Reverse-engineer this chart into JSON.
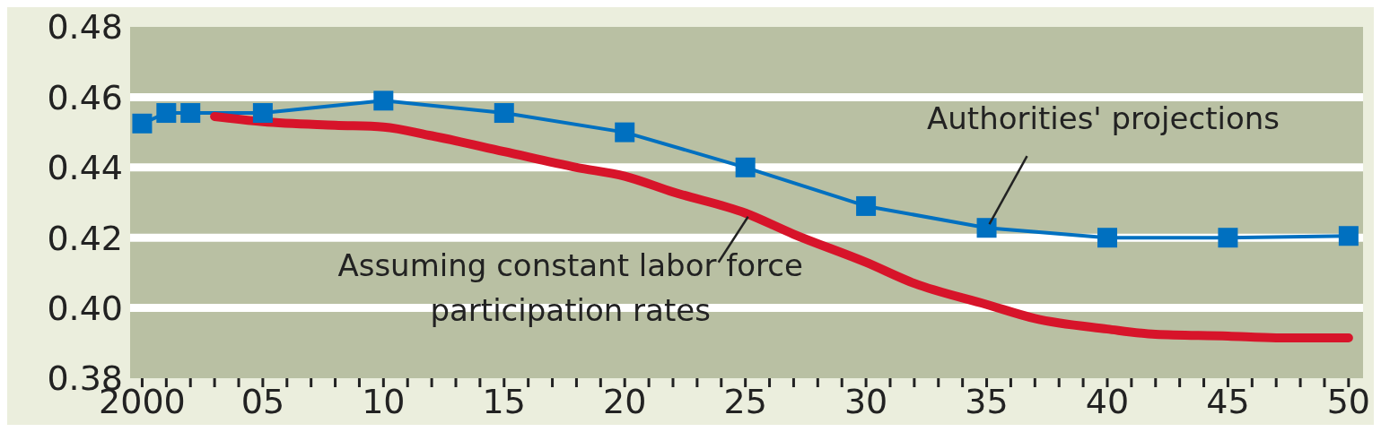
{
  "chart_data": {
    "type": "line",
    "x": [
      2000,
      2001,
      2002,
      2005,
      2010,
      2015,
      2020,
      2025,
      2030,
      2035,
      2040,
      2045,
      2050
    ],
    "series": [
      {
        "name": "Authorities' projections",
        "color": "#0070c0",
        "marker": "square",
        "values": [
          0.4525,
          0.4555,
          0.4555,
          0.4555,
          0.459,
          0.4555,
          0.45,
          0.44,
          0.429,
          0.4228,
          0.42,
          0.42,
          0.4205
        ]
      },
      {
        "name": "Assuming constant labor force participation rates",
        "color": "#d7142a",
        "marker": "none",
        "x": [
          2003,
          2005,
          2008,
          2010,
          2012,
          2015,
          2018,
          2020,
          2022,
          2025,
          2027,
          2030,
          2032,
          2035,
          2037,
          2040,
          2042,
          2045,
          2047,
          2050
        ],
        "values": [
          0.4545,
          0.453,
          0.452,
          0.4515,
          0.449,
          0.4445,
          0.44,
          0.4375,
          0.433,
          0.427,
          0.421,
          0.413,
          0.407,
          0.401,
          0.397,
          0.394,
          0.3925,
          0.392,
          0.3915,
          0.3915
        ]
      }
    ],
    "xlim": [
      1999.5,
      2050.6
    ],
    "xticks": [
      {
        "value": 2000,
        "label": "2000"
      },
      {
        "value": 2001,
        "label": null
      },
      {
        "value": 2002,
        "label": null
      },
      {
        "value": 2003,
        "label": null
      },
      {
        "value": 2004,
        "label": null
      },
      {
        "value": 2005,
        "label": "05"
      },
      {
        "value": 2006,
        "label": null
      },
      {
        "value": 2007,
        "label": null
      },
      {
        "value": 2008,
        "label": null
      },
      {
        "value": 2009,
        "label": null
      },
      {
        "value": 2010,
        "label": "10"
      },
      {
        "value": 2011,
        "label": null
      },
      {
        "value": 2012,
        "label": null
      },
      {
        "value": 2013,
        "label": null
      },
      {
        "value": 2014,
        "label": null
      },
      {
        "value": 2015,
        "label": "15"
      },
      {
        "value": 2016,
        "label": null
      },
      {
        "value": 2017,
        "label": null
      },
      {
        "value": 2018,
        "label": null
      },
      {
        "value": 2019,
        "label": null
      },
      {
        "value": 2020,
        "label": "20"
      },
      {
        "value": 2021,
        "label": null
      },
      {
        "value": 2022,
        "label": null
      },
      {
        "value": 2023,
        "label": null
      },
      {
        "value": 2024,
        "label": null
      },
      {
        "value": 2025,
        "label": "25"
      },
      {
        "value": 2026,
        "label": null
      },
      {
        "value": 2027,
        "label": null
      },
      {
        "value": 2028,
        "label": null
      },
      {
        "value": 2029,
        "label": null
      },
      {
        "value": 2030,
        "label": "30"
      },
      {
        "value": 2031,
        "label": null
      },
      {
        "value": 2032,
        "label": null
      },
      {
        "value": 2033,
        "label": null
      },
      {
        "value": 2034,
        "label": null
      },
      {
        "value": 2035,
        "label": "35"
      },
      {
        "value": 2036,
        "label": null
      },
      {
        "value": 2037,
        "label": null
      },
      {
        "value": 2038,
        "label": null
      },
      {
        "value": 2039,
        "label": null
      },
      {
        "value": 2040,
        "label": "40"
      },
      {
        "value": 2041,
        "label": null
      },
      {
        "value": 2042,
        "label": null
      },
      {
        "value": 2043,
        "label": null
      },
      {
        "value": 2044,
        "label": null
      },
      {
        "value": 2045,
        "label": "45"
      },
      {
        "value": 2046,
        "label": null
      },
      {
        "value": 2047,
        "label": null
      },
      {
        "value": 2048,
        "label": null
      },
      {
        "value": 2049,
        "label": null
      },
      {
        "value": 2050,
        "label": "50"
      }
    ],
    "ylim": [
      0.38,
      0.48
    ],
    "yticks": [
      {
        "value": 0.38,
        "label": "0.38"
      },
      {
        "value": 0.4,
        "label": "0.40"
      },
      {
        "value": 0.42,
        "label": "0.42"
      },
      {
        "value": 0.44,
        "label": "0.44"
      },
      {
        "value": 0.46,
        "label": "0.46"
      },
      {
        "value": 0.48,
        "label": "0.48"
      }
    ],
    "grid": "y"
  }
}
